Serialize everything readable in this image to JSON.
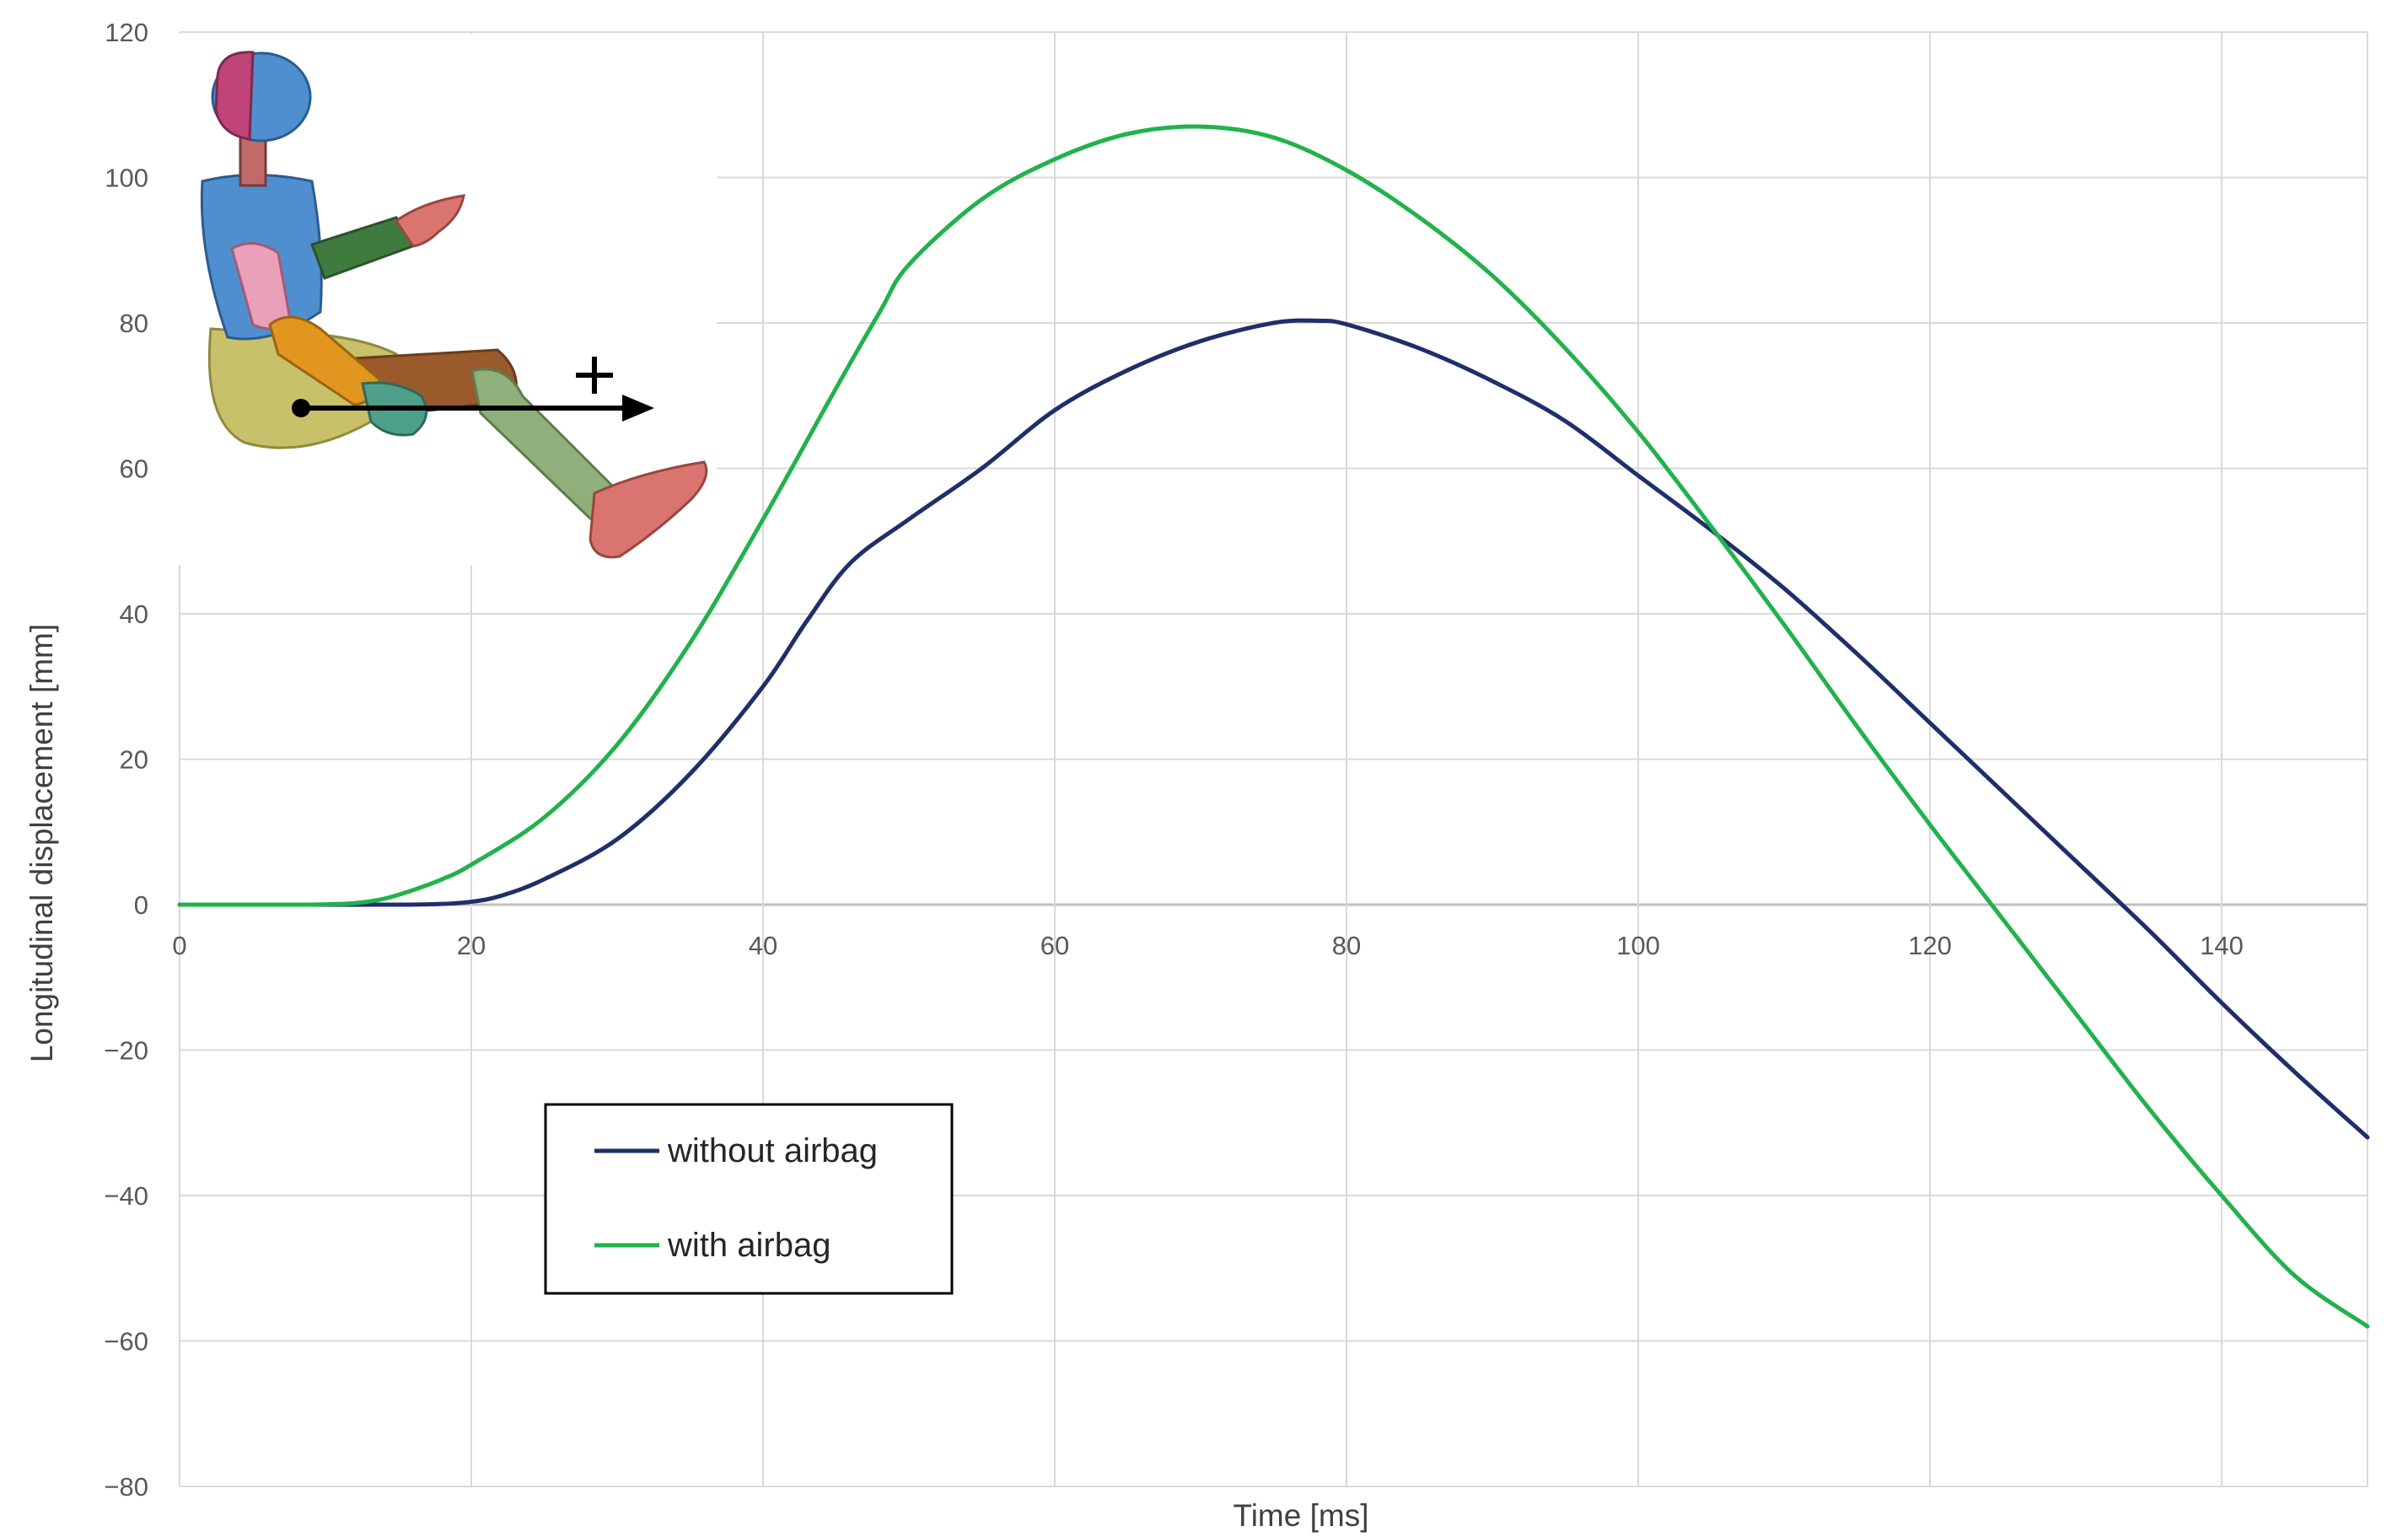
{
  "chart_data": {
    "type": "line",
    "xlabel": "Time [ms]",
    "ylabel": "Longitudinal displacement  [mm]",
    "xlim": [
      0,
      150
    ],
    "ylim": [
      -80,
      120
    ],
    "xticks": [
      0,
      20,
      40,
      60,
      80,
      100,
      120,
      140
    ],
    "yticks": [
      120,
      100,
      80,
      60,
      40,
      20,
      0,
      -20,
      -40,
      -60,
      -80
    ],
    "ytick_labels": [
      "120",
      "100",
      "80",
      "60",
      "40",
      "20",
      "0",
      "−20",
      "−40",
      "−60",
      "−80"
    ],
    "grid": true,
    "legend_position": "lower-left",
    "series": [
      {
        "name": "without airbag",
        "color": "#1f2f6b",
        "x": [
          0,
          10,
          15,
          18,
          20,
          22,
          25,
          30,
          35,
          40,
          43,
          46,
          50,
          55,
          60,
          65,
          70,
          75,
          78,
          80,
          85,
          90,
          95,
          100,
          105,
          110,
          115,
          120,
          125,
          130,
          135,
          140,
          145,
          150
        ],
        "y": [
          0,
          0,
          0,
          0.1,
          0.4,
          1.2,
          3.5,
          9,
          18,
          30,
          39,
          47,
          53,
          60,
          68,
          73.5,
          77.5,
          80,
          80.3,
          79.8,
          76.5,
          72,
          66.5,
          59,
          51.5,
          43.5,
          34.5,
          25,
          15.5,
          6,
          -3.5,
          -13.5,
          -23,
          -32
        ]
      },
      {
        "name": "with airbag",
        "color": "#22b24c",
        "x": [
          0,
          8,
          10,
          12,
          14,
          16,
          18,
          20,
          25,
          30,
          35,
          40,
          45,
          48,
          50,
          55,
          60,
          65,
          70,
          75,
          80,
          85,
          90,
          95,
          100,
          105,
          110,
          115,
          120,
          125,
          130,
          135,
          140,
          145,
          150
        ],
        "y": [
          0,
          0,
          0.05,
          0.2,
          0.8,
          2,
          3.5,
          5.5,
          12,
          22,
          36,
          53,
          71,
          81.5,
          88,
          97,
          102.5,
          106,
          107,
          105.5,
          101,
          94.5,
          86.5,
          76.5,
          65,
          52,
          38.5,
          24.5,
          11,
          -2,
          -15,
          -28,
          -40,
          -51,
          -58
        ]
      }
    ]
  }
}
